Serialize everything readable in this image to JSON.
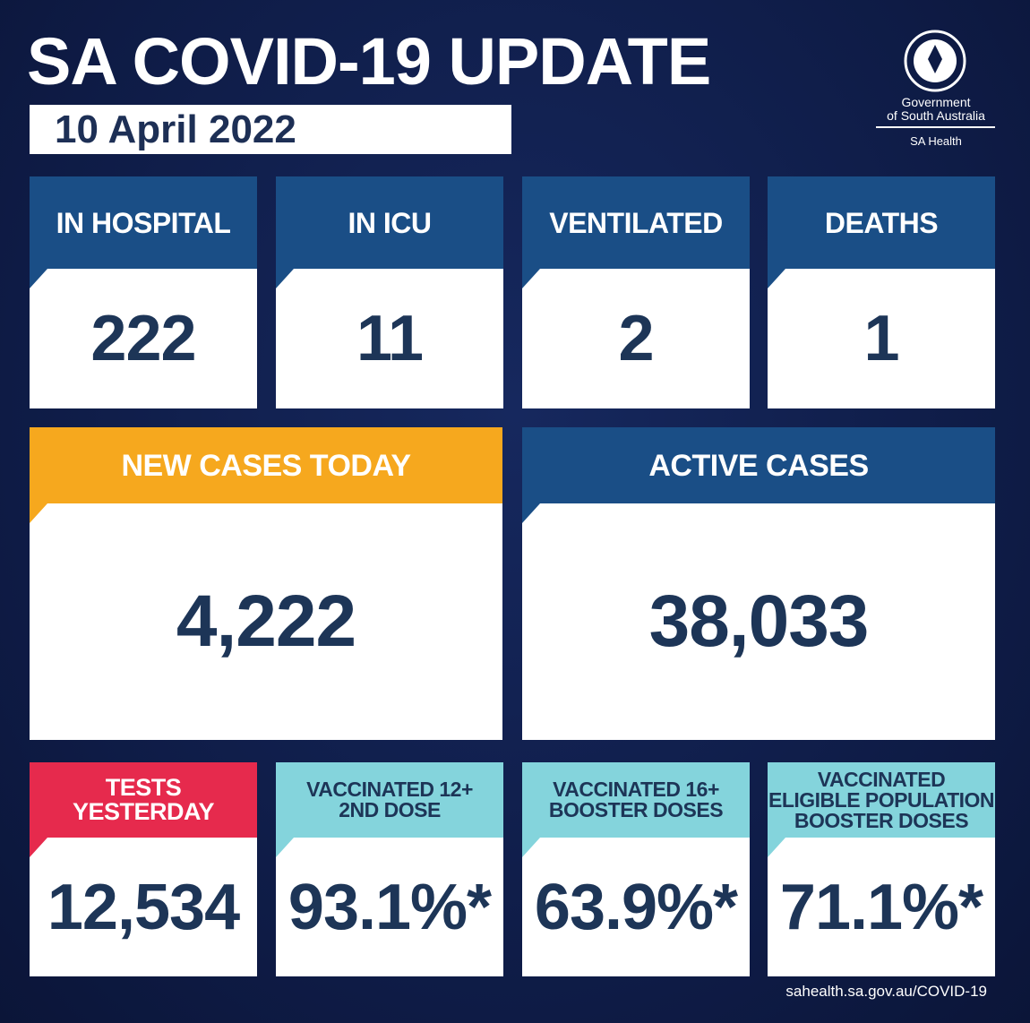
{
  "header": {
    "title": "SA COVID-19 UPDATE",
    "date": "10 April 2022"
  },
  "logo": {
    "lines": [
      "Government",
      "of South Australia"
    ],
    "sub": "SA Health"
  },
  "tiles": [
    {
      "label": [
        "IN HOSPITAL"
      ],
      "value": "222",
      "color": "#1a4e86",
      "label_color": "#ffffff"
    },
    {
      "label": [
        "IN ICU"
      ],
      "value": "11",
      "color": "#1a4e86",
      "label_color": "#ffffff"
    },
    {
      "label": [
        "VENTILATED"
      ],
      "value": "2",
      "color": "#1a4e86",
      "label_color": "#ffffff"
    },
    {
      "label": [
        "DEATHS"
      ],
      "value": "1",
      "color": "#1a4e86",
      "label_color": "#ffffff"
    },
    {
      "label": [
        "NEW CASES TODAY"
      ],
      "value": "4,222",
      "color": "#f6a81e",
      "label_color": "#ffffff"
    },
    {
      "label": [
        "ACTIVE CASES"
      ],
      "value": "38,033",
      "color": "#1a4e86",
      "label_color": "#ffffff"
    },
    {
      "label": [
        "TESTS",
        "YESTERDAY"
      ],
      "value": "12,534",
      "color": "#e62a4d",
      "label_color": "#ffffff"
    },
    {
      "label": [
        "VACCINATED 12+",
        "2ND DOSE"
      ],
      "value": "93.1%*",
      "color": "#84d4dc",
      "label_color": "#1d3557"
    },
    {
      "label": [
        "VACCINATED 16+",
        "BOOSTER DOSES"
      ],
      "value": "63.9%*",
      "color": "#84d4dc",
      "label_color": "#1d3557"
    },
    {
      "label": [
        "VACCINATED",
        "ELIGIBLE POPULATION",
        "BOOSTER DOSES"
      ],
      "value": "71.1%*",
      "color": "#84d4dc",
      "label_color": "#1d3557"
    }
  ],
  "footer": "sahealth.sa.gov.au/COVID-19"
}
